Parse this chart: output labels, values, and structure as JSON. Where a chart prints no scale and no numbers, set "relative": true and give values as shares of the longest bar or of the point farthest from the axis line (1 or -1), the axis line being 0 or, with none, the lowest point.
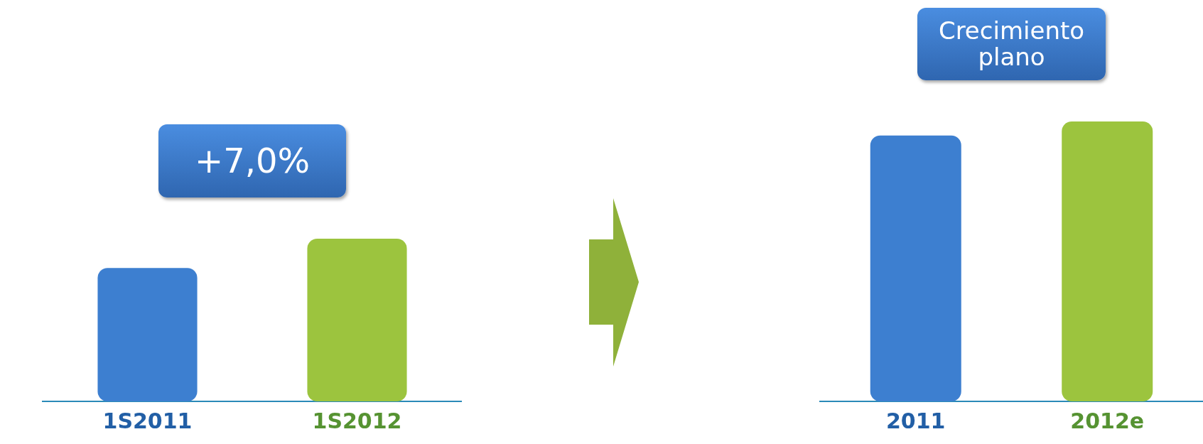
{
  "chart_data": [
    {
      "type": "bar",
      "relative": true,
      "categories": [
        "1S2011",
        "1S2012"
      ],
      "values": [
        0.82,
        1
      ],
      "colors": [
        "#3d7fd0",
        "#9cc43e"
      ],
      "annotations": [
        "+7,0%"
      ],
      "grid": false,
      "legend": false
    },
    {
      "type": "bar",
      "relative": true,
      "categories": [
        "2011",
        "2012e"
      ],
      "values": [
        0.95,
        1
      ],
      "colors": [
        "#3d7fd0",
        "#9cc43e"
      ],
      "annotations": [
        "Crecimiento plano"
      ],
      "grid": false,
      "legend": false
    }
  ]
}
